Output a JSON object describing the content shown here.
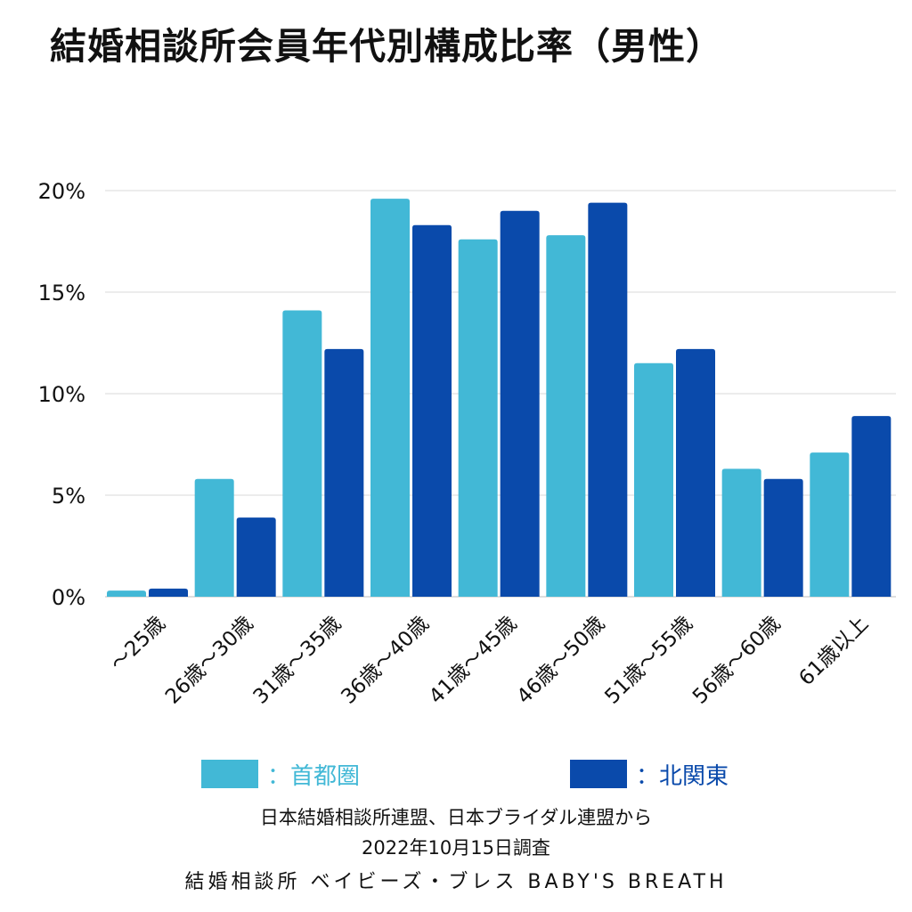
{
  "title": "結婚相談所会員年代別構成比率（男性）",
  "chart_data": {
    "type": "bar",
    "categories": [
      "～25歳",
      "26歳～30歳",
      "31歳～35歳",
      "36歳～40歳",
      "41歳～45歳",
      "46歳～50歳",
      "51歳～55歳",
      "56歳～60歳",
      "61歳以上"
    ],
    "series": [
      {
        "name": "：首都圏",
        "color": "#42b8d6",
        "values": [
          0.3,
          5.8,
          14.1,
          19.6,
          17.6,
          17.8,
          11.5,
          6.3,
          7.1
        ]
      },
      {
        "name": "：北関東",
        "color": "#0a4aab",
        "values": [
          0.4,
          3.9,
          12.2,
          18.3,
          19.0,
          19.4,
          12.2,
          5.8,
          8.9
        ]
      }
    ],
    "y_ticks": [
      "0%",
      "5%",
      "10%",
      "15%",
      "20%"
    ],
    "ylim": [
      0,
      20
    ],
    "grid": true,
    "legend_position": "bottom"
  },
  "footer": {
    "source": "日本結婚相談所連盟、日本ブライダル連盟から",
    "date": "2022年10月15日調査",
    "brand": "結婚相談所 ベイビーズ・ブレス BABY'S BREATH"
  }
}
